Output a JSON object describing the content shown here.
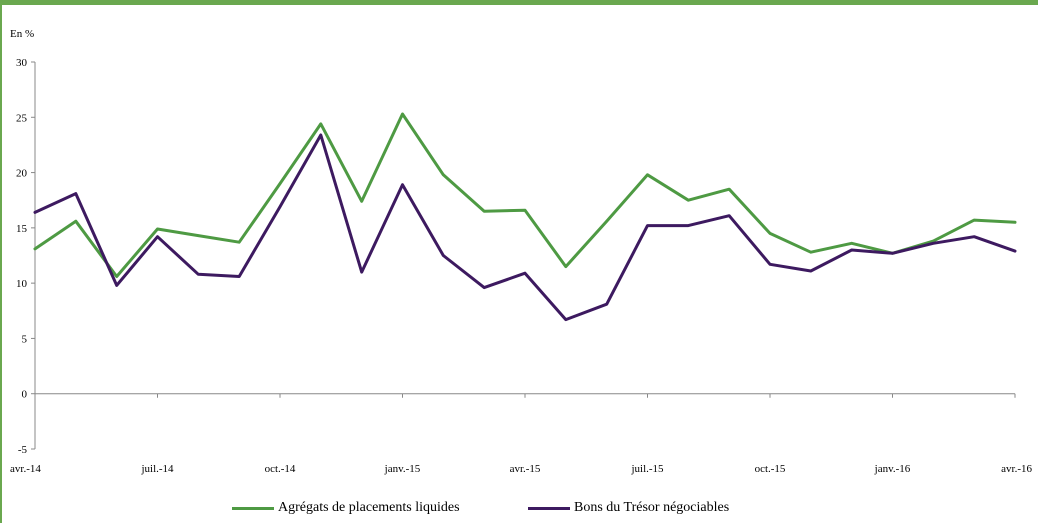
{
  "colors": {
    "frame": "#6aa84f",
    "green": "#4e9a43",
    "purple": "#3d1a60",
    "axis": "#888888"
  },
  "chart_data": {
    "type": "line",
    "ylabel": "En %",
    "ylim": [
      -5,
      30
    ],
    "yticks": [
      "-5",
      "0",
      "5",
      "10",
      "15",
      "20",
      "25",
      "30"
    ],
    "x_tick_labels": [
      "avr.-14",
      "juil.-14",
      "oct.-14",
      "janv.-15",
      "avr.-15",
      "juil.-15",
      "oct.-15",
      "janv.-16",
      "avr.-16"
    ],
    "x": [
      "avr.-14",
      "mai-14",
      "juin-14",
      "juil.-14",
      "août-14",
      "sept.-14",
      "oct.-14",
      "nov.-14",
      "déc.-14",
      "janv.-15",
      "févr.-15",
      "mars-15",
      "avr.-15",
      "mai-15",
      "juin-15",
      "juil.-15",
      "août-15",
      "sept.-15",
      "oct.-15",
      "nov.-15",
      "déc.-15",
      "janv.-16",
      "févr.-16",
      "mars-16",
      "avr.-16"
    ],
    "series": [
      {
        "name": "Agrégats de placements liquides",
        "color": "green",
        "values": [
          13.1,
          15.6,
          10.6,
          14.9,
          14.3,
          13.7,
          19.0,
          24.4,
          17.4,
          25.3,
          19.8,
          16.5,
          16.6,
          11.5,
          15.6,
          19.8,
          17.5,
          18.5,
          14.5,
          12.8,
          13.6,
          12.7,
          13.8,
          15.7,
          15.5
        ]
      },
      {
        "name": "Bons du Trésor négociables",
        "color": "purple",
        "values": [
          16.4,
          18.1,
          9.8,
          14.2,
          10.8,
          10.6,
          16.9,
          23.4,
          11.0,
          18.9,
          12.5,
          9.6,
          10.9,
          6.7,
          8.1,
          15.2,
          15.2,
          16.1,
          11.7,
          11.1,
          13.0,
          12.7,
          13.6,
          14.2,
          12.9
        ]
      }
    ]
  }
}
